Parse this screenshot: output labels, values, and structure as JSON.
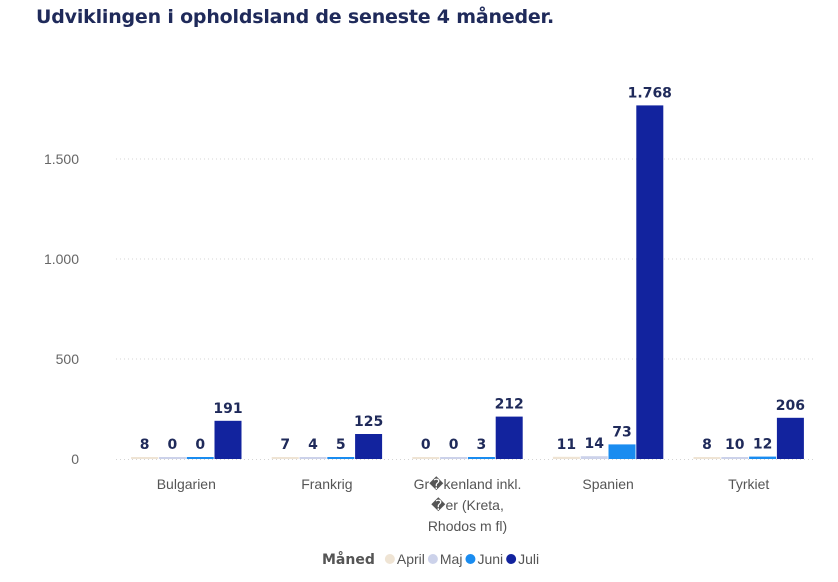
{
  "chart_data": {
    "type": "bar",
    "title": "Udviklingen i opholdsland de seneste 4 måneder.",
    "categories": [
      "Bulgarien",
      "Frankrig",
      "Gr�kenland inkl. �er (Kreta, Rhodos m fl)",
      "Spanien",
      "Tyrkiet"
    ],
    "category_lines": [
      [
        "Bulgarien"
      ],
      [
        "Frankrig"
      ],
      [
        "Gr�kenland inkl.",
        "�er (Kreta,",
        "Rhodos m fl)"
      ],
      [
        "Spanien"
      ],
      [
        "Tyrkiet"
      ]
    ],
    "series": [
      {
        "name": "April",
        "color": "#efe4d4",
        "values": [
          8,
          7,
          0,
          11,
          8
        ]
      },
      {
        "name": "Maj",
        "color": "#ccd2ea",
        "values": [
          0,
          4,
          0,
          14,
          10
        ]
      },
      {
        "name": "Juni",
        "color": "#1a8cf0",
        "values": [
          0,
          5,
          3,
          73,
          12
        ]
      },
      {
        "name": "Juli",
        "color": "#12239e",
        "values": [
          191,
          125,
          212,
          1768,
          206
        ]
      }
    ],
    "data_labels": [
      [
        "8",
        "7",
        "0",
        "11",
        "8"
      ],
      [
        "0",
        "4",
        "0",
        "14",
        "10"
      ],
      [
        "0",
        "5",
        "3",
        "73",
        "12"
      ],
      [
        "191",
        "125",
        "212",
        "1.768",
        "206"
      ]
    ],
    "yticks": [
      0,
      500,
      1000,
      1500
    ],
    "ytick_labels": [
      "0",
      "500",
      "1.000",
      "1.500"
    ],
    "ylim": [
      0,
      1900
    ],
    "legend_title": "Måned",
    "legend_position": "bottom-center",
    "grid": true,
    "xlabel": "",
    "ylabel": ""
  }
}
